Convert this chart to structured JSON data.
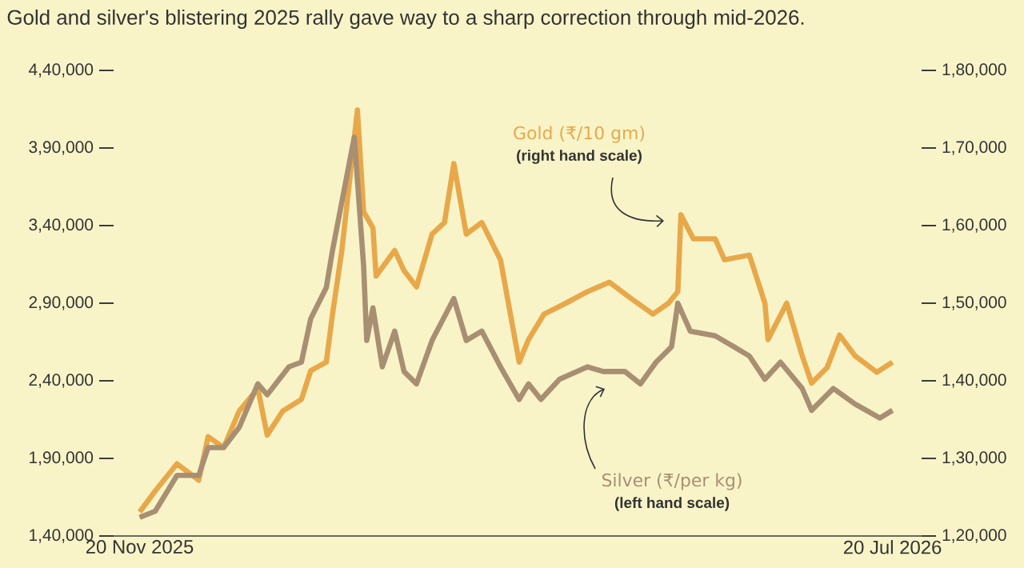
{
  "chart_data": {
    "type": "line",
    "title": "Gold and silver's blistering 2025 rally gave way to a sharp correction through mid-2026.",
    "annotations": [
      "(right hand scale)",
      "(left hand scale)"
    ],
    "xlim": [
      "2025-11-07",
      "2026-08-03"
    ],
    "xticks": [
      {
        "value": "2025-11-20",
        "label": "20 Nov 2025"
      },
      {
        "value": "2026-07-20",
        "label": "20 Jul 2026"
      }
    ],
    "ylim": [
      140000,
      440000
    ],
    "yticks": [
      {
        "value": 140000,
        "label": "1,40,000"
      },
      {
        "value": 190000,
        "label": "1,90,000"
      },
      {
        "value": 240000,
        "label": "2,40,000"
      },
      {
        "value": 290000,
        "label": "2,90,000"
      },
      {
        "value": 340000,
        "label": "3,40,000"
      },
      {
        "value": 390000,
        "label": "3,90,000"
      },
      {
        "value": 440000,
        "label": "4,40,000"
      }
    ],
    "y2lim": [
      120000,
      180000
    ],
    "y2ticks": [
      {
        "value": 120000,
        "label": "1,20,000"
      },
      {
        "value": 130000,
        "label": "1,30,000"
      },
      {
        "value": 140000,
        "label": "1,40,000"
      },
      {
        "value": 150000,
        "label": "1,50,000"
      },
      {
        "value": 160000,
        "label": "1,60,000"
      },
      {
        "value": 170000,
        "label": "1,70,000"
      },
      {
        "value": 180000,
        "label": "1,80,000"
      }
    ],
    "grid": false,
    "marker": "none",
    "line_style": "solid",
    "series": [
      {
        "name": "Gold (₹/10 gm)",
        "color": "#e8a84a",
        "axis": "y2",
        "x": [
          "2025-11-20",
          "2025-11-25",
          "2025-12-02",
          "2025-12-09",
          "2025-12-12",
          "2025-12-17",
          "2025-12-22",
          "2025-12-28",
          "2025-12-31",
          "2026-01-05",
          "2026-01-11",
          "2026-01-14",
          "2026-01-19",
          "2026-01-21",
          "2026-01-24",
          "2026-01-29",
          "2026-01-31",
          "2026-02-03",
          "2026-02-04",
          "2026-02-10",
          "2026-02-13",
          "2026-02-17",
          "2026-02-22",
          "2026-02-26",
          "2026-03-01",
          "2026-03-05",
          "2026-03-10",
          "2026-03-16",
          "2026-03-22",
          "2026-03-25",
          "2026-03-30",
          "2026-04-06",
          "2026-04-13",
          "2026-04-20",
          "2026-04-27",
          "2026-05-04",
          "2026-05-09",
          "2026-05-12",
          "2026-05-13",
          "2026-05-17",
          "2026-05-24",
          "2026-05-27",
          "2026-06-04",
          "2026-06-09",
          "2026-06-10",
          "2026-06-16",
          "2026-06-21",
          "2026-06-24",
          "2026-06-29",
          "2026-07-03",
          "2026-07-08",
          "2026-07-15",
          "2026-07-20"
        ],
        "values": [
          123100,
          125800,
          129300,
          127200,
          132800,
          131400,
          136100,
          139000,
          133000,
          136100,
          137600,
          141300,
          142400,
          148600,
          156800,
          174900,
          161800,
          159700,
          153500,
          156800,
          154200,
          152100,
          158900,
          160400,
          168000,
          158900,
          160400,
          155600,
          142400,
          145300,
          148600,
          150000,
          151500,
          152700,
          150600,
          148600,
          150000,
          151500,
          161400,
          158300,
          158300,
          155600,
          156200,
          150000,
          145300,
          150000,
          143200,
          139700,
          141700,
          145900,
          143200,
          141100,
          142400
        ]
      },
      {
        "name": "Silver (₹/per kg)",
        "color": "#a88f72",
        "axis": "y",
        "x": [
          "2025-11-20",
          "2025-11-25",
          "2025-12-02",
          "2025-12-09",
          "2025-12-12",
          "2025-12-17",
          "2025-12-22",
          "2025-12-28",
          "2025-12-31",
          "2026-01-07",
          "2026-01-11",
          "2026-01-14",
          "2026-01-19",
          "2026-01-21",
          "2026-01-28",
          "2026-01-31",
          "2026-02-01",
          "2026-02-03",
          "2026-02-06",
          "2026-02-10",
          "2026-02-13",
          "2026-02-17",
          "2026-02-22",
          "2026-03-01",
          "2026-03-05",
          "2026-03-10",
          "2026-03-16",
          "2026-03-22",
          "2026-03-25",
          "2026-03-29",
          "2026-04-04",
          "2026-04-13",
          "2026-04-18",
          "2026-04-25",
          "2026-04-30",
          "2026-05-05",
          "2026-05-10",
          "2026-05-12",
          "2026-05-16",
          "2026-05-24",
          "2026-05-30",
          "2026-06-04",
          "2026-06-09",
          "2026-06-14",
          "2026-06-21",
          "2026-06-24",
          "2026-07-01",
          "2026-07-08",
          "2026-07-16",
          "2026-07-20"
        ],
        "values": [
          152000,
          156000,
          179000,
          179000,
          197000,
          197000,
          210000,
          238000,
          231000,
          249000,
          252000,
          280000,
          300000,
          324000,
          397000,
          314000,
          266000,
          287000,
          249000,
          272000,
          246000,
          238000,
          266000,
          293000,
          266000,
          272000,
          249000,
          228000,
          238000,
          228000,
          241000,
          249000,
          246000,
          246000,
          238000,
          252000,
          262000,
          290000,
          272000,
          269000,
          262000,
          256000,
          241000,
          252000,
          235000,
          221000,
          235000,
          225000,
          216000,
          221000
        ]
      }
    ]
  }
}
